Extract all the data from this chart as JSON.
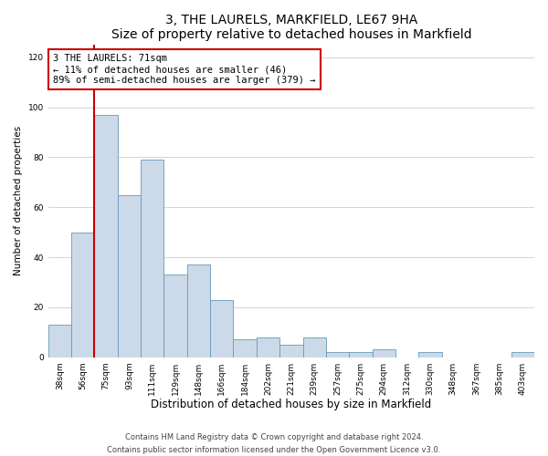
{
  "title": "3, THE LAURELS, MARKFIELD, LE67 9HA",
  "subtitle": "Size of property relative to detached houses in Markfield",
  "xlabel": "Distribution of detached houses by size in Markfield",
  "ylabel": "Number of detached properties",
  "categories": [
    "38sqm",
    "56sqm",
    "75sqm",
    "93sqm",
    "111sqm",
    "129sqm",
    "148sqm",
    "166sqm",
    "184sqm",
    "202sqm",
    "221sqm",
    "239sqm",
    "257sqm",
    "275sqm",
    "294sqm",
    "312sqm",
    "330sqm",
    "348sqm",
    "367sqm",
    "385sqm",
    "403sqm"
  ],
  "values": [
    13,
    50,
    97,
    65,
    79,
    33,
    37,
    23,
    7,
    8,
    5,
    8,
    2,
    2,
    3,
    0,
    2,
    0,
    0,
    0,
    2
  ],
  "bar_color": "#ccd9e8",
  "bar_edge_color": "#6699bb",
  "highlight_idx": 2,
  "highlight_color": "#cc0000",
  "annotation_text": "3 THE LAURELS: 71sqm\n← 11% of detached houses are smaller (46)\n89% of semi-detached houses are larger (379) →",
  "annotation_box_color": "#ffffff",
  "annotation_box_edge_color": "#cc0000",
  "ylim": [
    0,
    125
  ],
  "yticks": [
    0,
    20,
    40,
    60,
    80,
    100,
    120
  ],
  "grid_color": "#cccccc",
  "bg_color": "#ffffff",
  "footer_text": "Contains HM Land Registry data © Crown copyright and database right 2024.\nContains public sector information licensed under the Open Government Licence v3.0.",
  "title_fontsize": 10,
  "subtitle_fontsize": 9,
  "xlabel_fontsize": 8.5,
  "ylabel_fontsize": 7.5,
  "tick_fontsize": 6.5,
  "annotation_fontsize": 7.5,
  "footer_fontsize": 6
}
